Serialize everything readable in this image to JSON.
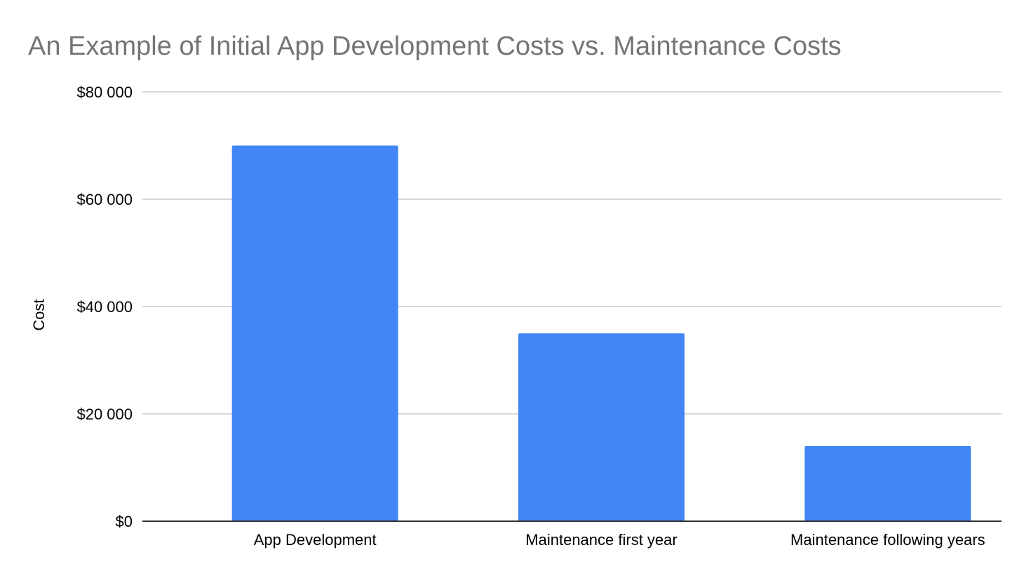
{
  "chart_data": {
    "type": "bar",
    "title": "An Example of Initial App Development Costs vs. Maintenance Costs",
    "xlabel": "",
    "ylabel": "Cost",
    "categories": [
      "App Development",
      "Maintenance first year",
      "Maintenance following years"
    ],
    "values": [
      70000,
      35000,
      14000
    ],
    "ylim": [
      0,
      80000
    ],
    "yticks": [
      0,
      20000,
      40000,
      60000,
      80000
    ],
    "ytick_labels": [
      "$0",
      "$20 000",
      "$40 000",
      "$60 000",
      "$80 000"
    ],
    "grid": true,
    "legend": "none",
    "bar_color": "#4285f4"
  }
}
